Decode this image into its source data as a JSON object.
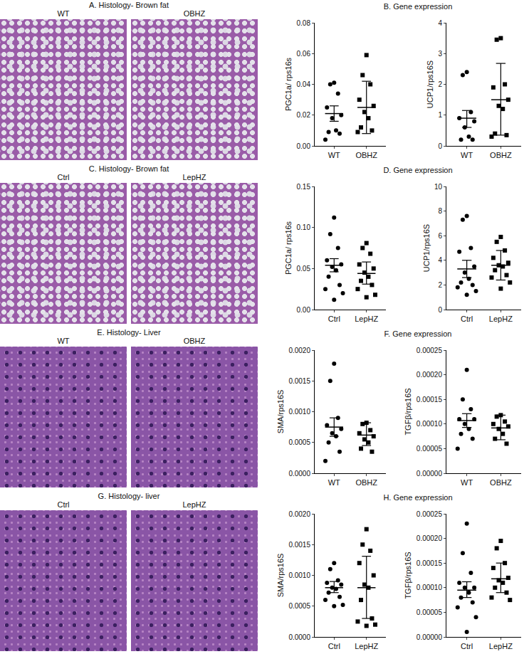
{
  "histology": [
    {
      "title": "A. Histology- Brown fat",
      "labels": [
        "WT",
        "OBHZ"
      ]
    },
    {
      "title": "C. Histology- Brown fat",
      "labels": [
        "Ctrl",
        "LepHZ"
      ]
    },
    {
      "title": "E. Histology- Liver",
      "labels": [
        "WT",
        "OBHZ"
      ]
    },
    {
      "title": "G. Histology- liver",
      "labels": [
        "Ctrl",
        "LepHZ"
      ]
    }
  ],
  "gene_titles": [
    "B. Gene expression",
    "D. Gene expression",
    "F. Gene expression",
    "H. Gene expression"
  ],
  "chart_data": [
    {
      "type": "scatter",
      "y_label": "PGC1a/ rps16s",
      "categories": [
        "WT",
        "OBHZ"
      ],
      "ylim": [
        0,
        0.08
      ],
      "yticks": [
        {
          "value": 0,
          "label": "0.00"
        },
        0.02,
        0.04,
        0.06,
        0.08
      ],
      "groups": [
        {
          "marker": "circle",
          "values": [
            0.041,
            0.04,
            0.034,
            0.025,
            0.02,
            0.018,
            0.01,
            0.009,
            0.008,
            0.004
          ],
          "mean": 0.021,
          "error_low": 0.016,
          "error_high": 0.026
        },
        {
          "marker": "square",
          "values": [
            0.059,
            0.046,
            0.04,
            0.03,
            0.026,
            0.022,
            0.018,
            0.012,
            0.01,
            0.009
          ],
          "mean": 0.025,
          "error_low": 0.008,
          "error_high": 0.042
        }
      ]
    },
    {
      "type": "scatter",
      "y_label": "UCP1/rps16S",
      "categories": [
        "WT",
        "OBHZ"
      ],
      "ylim": [
        0,
        4
      ],
      "yticks": [
        0,
        1,
        2,
        3,
        4
      ],
      "groups": [
        {
          "marker": "circle",
          "values": [
            2.4,
            2.3,
            1.1,
            0.9,
            0.8,
            0.6,
            0.3,
            0.2,
            0.2
          ],
          "mean": 0.9,
          "error_low": 0.6,
          "error_high": 1.15
        },
        {
          "marker": "square",
          "values": [
            3.5,
            3.45,
            2.0,
            1.9,
            1.5,
            1.3,
            1.2,
            0.4,
            0.35,
            0.3
          ],
          "mean": 1.5,
          "error_low": 0.35,
          "error_high": 2.68
        }
      ]
    },
    {
      "type": "scatter",
      "y_label": "PGC1a/ rps16s",
      "categories": [
        "Ctrl",
        "LepHZ"
      ],
      "ylim": [
        0,
        0.15
      ],
      "yticks": [
        {
          "value": 0,
          "label": "0.00"
        },
        0.05,
        {
          "value": 0.1,
          "label": "0.10"
        },
        0.15
      ],
      "groups": [
        {
          "marker": "circle",
          "values": [
            0.112,
            0.092,
            0.075,
            0.06,
            0.055,
            0.052,
            0.048,
            0.04,
            0.03,
            0.025,
            0.02,
            0.012
          ],
          "mean": 0.054,
          "error_low": 0.046,
          "error_high": 0.062
        },
        {
          "marker": "square",
          "values": [
            0.081,
            0.075,
            0.068,
            0.055,
            0.05,
            0.045,
            0.04,
            0.035,
            0.03,
            0.025,
            0.018,
            0.015
          ],
          "mean": 0.044,
          "error_low": 0.031,
          "error_high": 0.058
        }
      ]
    },
    {
      "type": "scatter",
      "y_label": "UCP1/rps16S",
      "categories": [
        "Ctrl",
        "LepHZ"
      ],
      "ylim": [
        0,
        10
      ],
      "yticks": [
        0,
        2,
        4,
        6,
        8,
        10
      ],
      "groups": [
        {
          "marker": "circle",
          "values": [
            7.6,
            7.3,
            5.0,
            4.7,
            3.5,
            3.0,
            2.5,
            2.2,
            2.0,
            1.8,
            1.5,
            1.2
          ],
          "mean": 3.3,
          "error_low": 2.6,
          "error_high": 4.0
        },
        {
          "marker": "square",
          "values": [
            5.9,
            5.5,
            4.8,
            4.2,
            3.8,
            3.6,
            3.5,
            3.2,
            2.8,
            2.6,
            2.2,
            1.7
          ],
          "mean": 3.6,
          "error_low": 2.4,
          "error_high": 4.8
        }
      ]
    },
    {
      "type": "scatter",
      "y_label": "SMA/rps16S",
      "categories": [
        "WT",
        "OBHZ"
      ],
      "ylim": [
        0,
        0.002
      ],
      "yticks": [
        {
          "value": 0,
          "label": "0.0000"
        },
        0.0005,
        {
          "value": 0.001,
          "label": "0.0010"
        },
        0.0015,
        {
          "value": 0.002,
          "label": "0.0020"
        }
      ],
      "groups": [
        {
          "marker": "circle",
          "values": [
            0.00178,
            0.0015,
            0.0009,
            0.00078,
            0.00072,
            0.00065,
            0.0006,
            0.0005,
            0.00035,
            0.0002
          ],
          "mean": 0.00075,
          "error_low": 0.0006,
          "error_high": 0.0009
        },
        {
          "marker": "square",
          "values": [
            0.00082,
            0.0008,
            0.0007,
            0.00065,
            0.0006,
            0.00055,
            0.0005,
            0.0004,
            0.00035
          ],
          "mean": 0.00062,
          "error_low": 0.00045,
          "error_high": 0.00082
        }
      ]
    },
    {
      "type": "scatter",
      "y_label": "TGFβ/rps16S",
      "categories": [
        "WT",
        "OBHZ"
      ],
      "ylim": [
        0,
        0.00025
      ],
      "yticks": [
        {
          "value": 0,
          "label": "0.00000"
        },
        5e-05,
        {
          "value": 0.0001,
          "label": "0.00010"
        },
        0.00015,
        {
          "value": 0.0002,
          "label": "0.00020"
        },
        0.00025
      ],
      "groups": [
        {
          "marker": "circle",
          "values": [
            0.00021,
            0.00015,
            0.00013,
            0.00011,
            0.00011,
            0.0001,
            9e-05,
            8e-05,
            7e-05,
            5e-05
          ],
          "mean": 0.000107,
          "error_low": 9.3e-05,
          "error_high": 0.000121
        },
        {
          "marker": "square",
          "values": [
            0.000118,
            0.000115,
            0.000105,
            0.0001,
            9.5e-05,
            9e-05,
            8e-05,
            7e-05,
            6e-05
          ],
          "mean": 9.2e-05,
          "error_low": 6.8e-05,
          "error_high": 0.000118
        }
      ]
    },
    {
      "type": "scatter",
      "y_label": "SMA/rps16S",
      "categories": [
        "Ctrl",
        "LepHZ"
      ],
      "ylim": [
        0,
        0.002
      ],
      "yticks": [
        {
          "value": 0,
          "label": "0.0000"
        },
        0.0005,
        {
          "value": 0.001,
          "label": "0.0010"
        },
        0.0015,
        {
          "value": 0.002,
          "label": "0.0020"
        }
      ],
      "groups": [
        {
          "marker": "circle",
          "values": [
            0.0012,
            0.0011,
            0.00092,
            0.00088,
            0.00085,
            0.0008,
            0.00078,
            0.00072,
            0.00065,
            0.0006,
            0.00052,
            0.0005
          ],
          "mean": 0.0008,
          "error_low": 0.00072,
          "error_high": 0.0009
        },
        {
          "marker": "square",
          "values": [
            0.00175,
            0.0015,
            0.0014,
            0.0012,
            0.001,
            0.00085,
            0.0008,
            0.0006,
            0.0003,
            0.00025,
            0.0002,
            0.00018
          ],
          "mean": 0.0008,
          "error_low": 0.0003,
          "error_high": 0.00131
        }
      ]
    },
    {
      "type": "scatter",
      "y_label": "TGFβ/rps16S",
      "categories": [
        "Ctrl",
        "LepHZ"
      ],
      "ylim": [
        0,
        0.00025
      ],
      "yticks": [
        {
          "value": 0,
          "label": "0.00000"
        },
        5e-05,
        {
          "value": 0.0001,
          "label": "0.00010"
        },
        0.00015,
        {
          "value": 0.0002,
          "label": "0.00020"
        },
        0.00025
      ],
      "groups": [
        {
          "marker": "circle",
          "values": [
            0.00023,
            0.00017,
            0.00013,
            0.00011,
            0.0001,
            0.0001,
            9e-05,
            8e-05,
            7e-05,
            6e-05,
            4e-05,
            1e-05
          ],
          "mean": 9.5e-05,
          "error_low": 8e-05,
          "error_high": 0.000112
        },
        {
          "marker": "square",
          "values": [
            0.000195,
            0.00018,
            0.00015,
            0.00014,
            0.00012,
            0.000115,
            0.00011,
            0.0001,
            9e-05,
            8e-05,
            7.5e-05
          ],
          "mean": 0.000118,
          "error_low": 9e-05,
          "error_high": 0.00015
        }
      ]
    }
  ]
}
